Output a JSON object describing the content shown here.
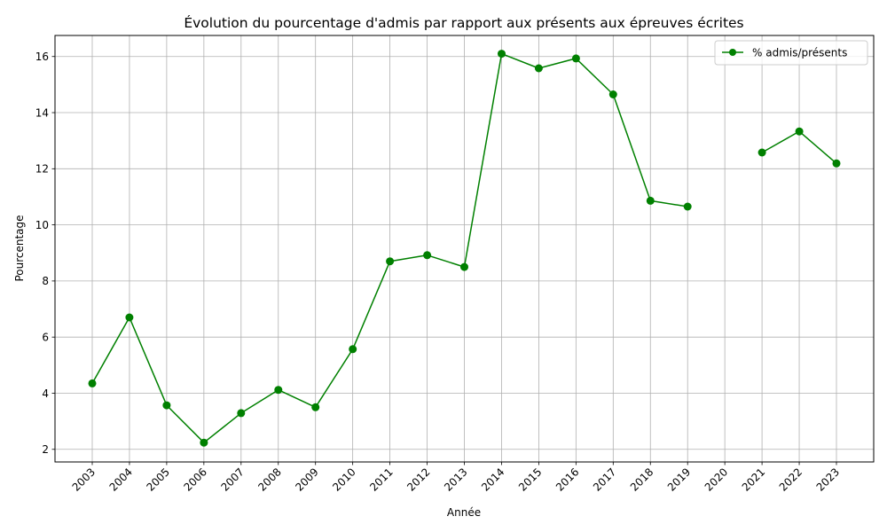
{
  "chart_data": {
    "type": "line",
    "title": "Évolution du pourcentage d'admis par rapport aux présents aux épreuves écrites",
    "xlabel": "Année",
    "ylabel": "Pourcentage",
    "categories": [
      "2003",
      "2004",
      "2005",
      "2006",
      "2007",
      "2008",
      "2009",
      "2010",
      "2011",
      "2012",
      "2013",
      "2014",
      "2015",
      "2016",
      "2017",
      "2018",
      "2019",
      "2020",
      "2021",
      "2022",
      "2023"
    ],
    "yticks": [
      "2",
      "4",
      "6",
      "8",
      "10",
      "12",
      "14",
      "16"
    ],
    "ylim": [
      1.55,
      16.75
    ],
    "grid": true,
    "legend_position": "top-right",
    "series": [
      {
        "name": "% admis/présents",
        "color": "#008000",
        "marker": "circle",
        "values": [
          4.35,
          6.7,
          3.57,
          2.24,
          3.29,
          4.12,
          3.5,
          5.57,
          8.7,
          8.92,
          8.5,
          16.1,
          15.58,
          15.93,
          14.65,
          10.86,
          10.65,
          null,
          12.58,
          13.33,
          12.19
        ]
      }
    ]
  }
}
